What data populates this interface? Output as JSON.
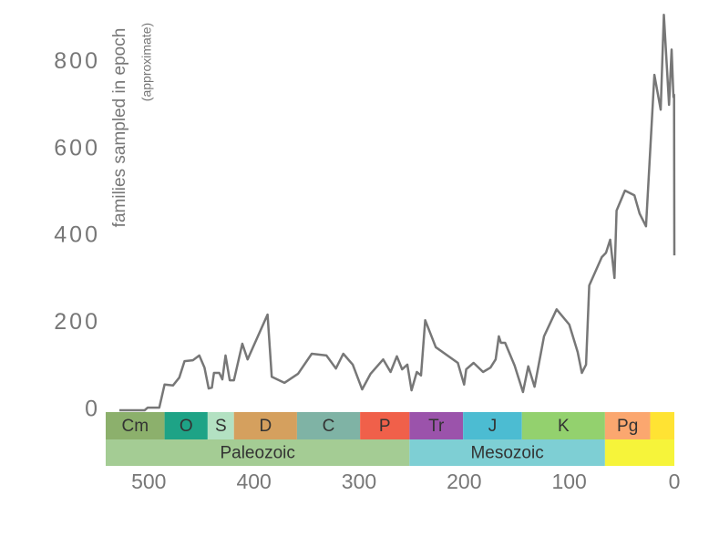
{
  "chart_data": {
    "type": "line",
    "y_label": "families sampled in epoch",
    "y_label_note": "(approximate)",
    "color": "#777777",
    "xlim": [
      541,
      0
    ],
    "ylim": [
      0,
      920
    ],
    "xticks": [
      500,
      400,
      300,
      200,
      100,
      0
    ],
    "yticks": [
      0,
      200,
      400,
      600,
      800
    ],
    "x": [
      528,
      504,
      501,
      490,
      485,
      477,
      471,
      466,
      458,
      452,
      447,
      443,
      440,
      438,
      433,
      430,
      427,
      423,
      419,
      411,
      406,
      387,
      383,
      371,
      358,
      345,
      331,
      322,
      315,
      306,
      297,
      289,
      277,
      270,
      264,
      259,
      254,
      250,
      245,
      241,
      237,
      227,
      206,
      200,
      198,
      191,
      182,
      175,
      170,
      167,
      165,
      161,
      152,
      144,
      139,
      133,
      124,
      112,
      100,
      92,
      88,
      84,
      81,
      69,
      65,
      61,
      57,
      55,
      47,
      38,
      33,
      27,
      19,
      13,
      10,
      5,
      2.6,
      0.9,
      0.3,
      0
    ],
    "values": [
      0,
      0,
      6,
      6,
      59,
      57,
      75,
      113,
      115,
      126,
      98,
      50,
      52,
      86,
      86,
      71,
      126,
      69,
      69,
      153,
      117,
      220,
      77,
      63,
      84,
      130,
      126,
      96,
      130,
      105,
      48,
      84,
      117,
      88,
      124,
      94,
      105,
      46,
      88,
      80,
      207,
      145,
      109,
      59,
      94,
      109,
      88,
      98,
      117,
      170,
      155,
      155,
      103,
      42,
      101,
      54,
      170,
      232,
      197,
      134,
      86,
      105,
      287,
      352,
      362,
      392,
      304,
      459,
      505,
      494,
      452,
      423,
      771,
      691,
      909,
      702,
      829,
      720,
      725,
      356
    ],
    "periods": [
      {
        "label": "Cm",
        "start": 541,
        "end": 485,
        "color": "#8cb06c"
      },
      {
        "label": "O",
        "start": 485,
        "end": 444,
        "color": "#1ea386"
      },
      {
        "label": "S",
        "start": 444,
        "end": 419,
        "color": "#b3e1c2"
      },
      {
        "label": "D",
        "start": 419,
        "end": 359,
        "color": "#d5a05e"
      },
      {
        "label": "C",
        "start": 359,
        "end": 299,
        "color": "#7fb3a5"
      },
      {
        "label": "P",
        "start": 299,
        "end": 252,
        "color": "#f0604a"
      },
      {
        "label": "Tr",
        "start": 252,
        "end": 201,
        "color": "#9b53ab"
      },
      {
        "label": "J",
        "start": 201,
        "end": 145,
        "color": "#4cbcd2"
      },
      {
        "label": "K",
        "start": 145,
        "end": 66,
        "color": "#93d16e"
      },
      {
        "label": "Pg",
        "start": 66,
        "end": 23,
        "color": "#fba76f"
      },
      {
        "label": null,
        "start": 23,
        "end": 0,
        "color": "#ffe333"
      }
    ],
    "eras": [
      {
        "label": "Paleozoic",
        "start": 541,
        "end": 252,
        "color": "#a4cc94"
      },
      {
        "label": "Mesozoic",
        "start": 252,
        "end": 66,
        "color": "#7ecfd4"
      },
      {
        "label": null,
        "start": 66,
        "end": 0,
        "color": "#f6f43a"
      }
    ]
  }
}
